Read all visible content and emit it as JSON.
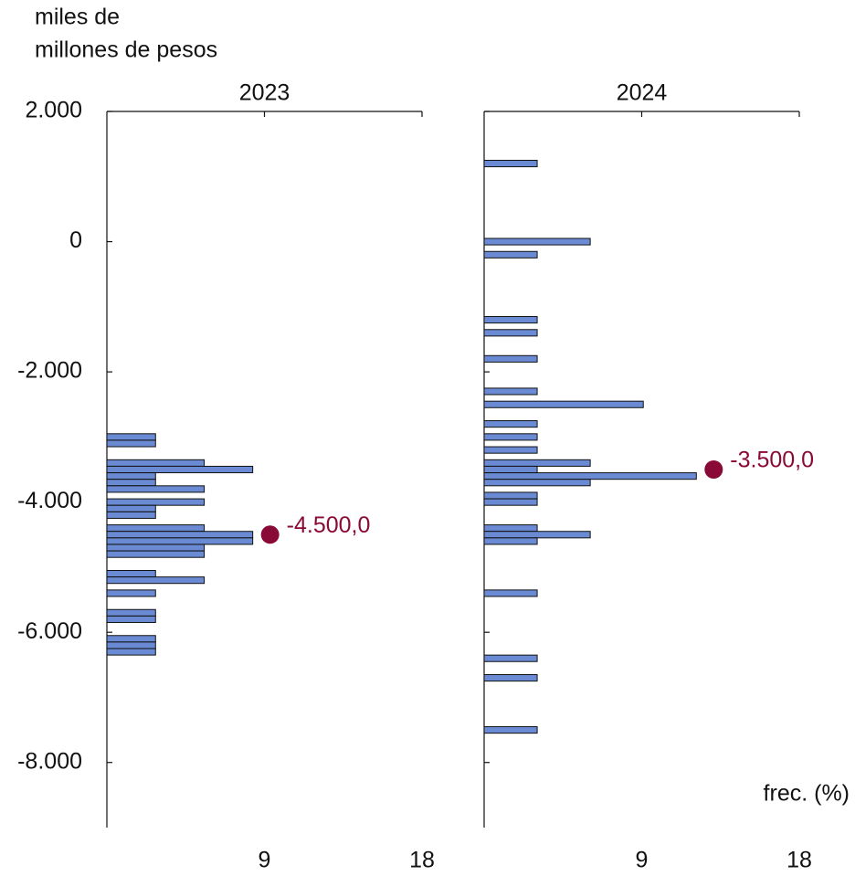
{
  "chart_data": {
    "type": "bar",
    "orientation": "horizontal",
    "y_label": [
      "miles de",
      "millones de pesos"
    ],
    "x_label": "frec. (%)",
    "ylim": [
      -9000,
      2000
    ],
    "yticks": [
      {
        "value": 2000,
        "label": "2.000"
      },
      0,
      {
        "value": -2000,
        "label": "-2.000"
      },
      {
        "value": -4000,
        "label": "-4.000"
      },
      {
        "value": -6000,
        "label": "-6.000"
      },
      {
        "value": -8000,
        "label": "-8.000"
      }
    ],
    "xlim": [
      0,
      18
    ],
    "xticks": [
      9,
      18
    ],
    "color": "#6a8bd4",
    "median_color": "#8a0a37",
    "panels": [
      {
        "title": "2023",
        "y": [
          -3000,
          -3100,
          -3400,
          -3500,
          -3600,
          -3700,
          -3800,
          -4000,
          -4100,
          -4200,
          -4400,
          -4500,
          -4600,
          -4700,
          -4800,
          -5100,
          -5200,
          -5400,
          -5700,
          -5800,
          -6100,
          -6200,
          -6300
        ],
        "values": [
          2.78,
          2.78,
          5.56,
          8.33,
          2.78,
          2.78,
          5.56,
          5.56,
          2.78,
          2.78,
          5.56,
          8.33,
          8.33,
          5.56,
          5.56,
          2.78,
          5.56,
          2.78,
          2.78,
          2.78,
          2.78,
          2.78,
          2.78
        ],
        "median": -4500,
        "median_label": "-4.500,0"
      },
      {
        "title": "2024",
        "y": [
          1200,
          0,
          -200,
          -1200,
          -1400,
          -1800,
          -2300,
          -2500,
          -2800,
          -3000,
          -3200,
          -3400,
          -3500,
          -3600,
          -3700,
          -3900,
          -4000,
          -4400,
          -4500,
          -4600,
          -5400,
          -6400,
          -6700,
          -7500
        ],
        "values": [
          3.03,
          6.06,
          3.03,
          3.03,
          3.03,
          3.03,
          3.03,
          9.09,
          3.03,
          3.03,
          3.03,
          6.06,
          3.03,
          12.12,
          6.06,
          3.03,
          3.03,
          3.03,
          6.06,
          3.03,
          3.03,
          3.03,
          3.03,
          3.03
        ],
        "median": -3500,
        "median_label": "-3.500,0"
      }
    ]
  }
}
